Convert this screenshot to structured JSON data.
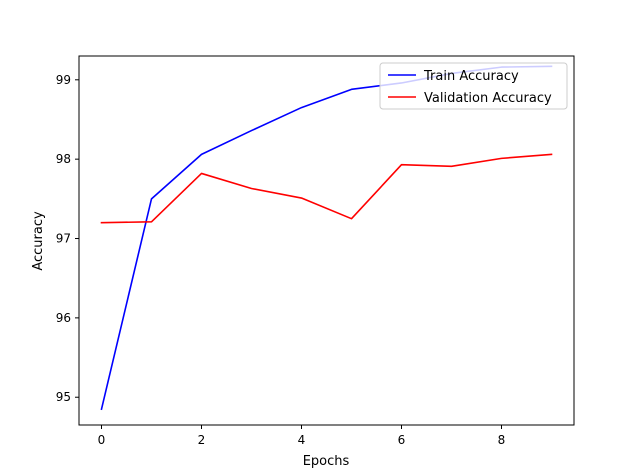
{
  "chart_data": {
    "type": "line",
    "title": "",
    "xlabel": "Epochs",
    "ylabel": "Accuracy",
    "x": [
      0,
      1,
      2,
      3,
      4,
      5,
      6,
      7,
      8,
      9
    ],
    "xticks": [
      0,
      2,
      4,
      6,
      8
    ],
    "yticks": [
      95,
      96,
      97,
      98,
      99
    ],
    "xlim": [
      -0.45,
      9.45
    ],
    "ylim": [
      94.65,
      99.3
    ],
    "grid": false,
    "legend_position": "top-right",
    "series": [
      {
        "name": "Train Accuracy",
        "color": "#0000ff",
        "values": [
          94.85,
          97.5,
          98.06,
          98.36,
          98.65,
          98.88,
          98.96,
          99.08,
          99.16,
          99.17
        ]
      },
      {
        "name": "Validation Accuracy",
        "color": "#ff0000",
        "values": [
          97.2,
          97.21,
          97.82,
          97.63,
          97.51,
          97.25,
          97.93,
          97.91,
          98.01,
          98.06
        ]
      }
    ]
  }
}
